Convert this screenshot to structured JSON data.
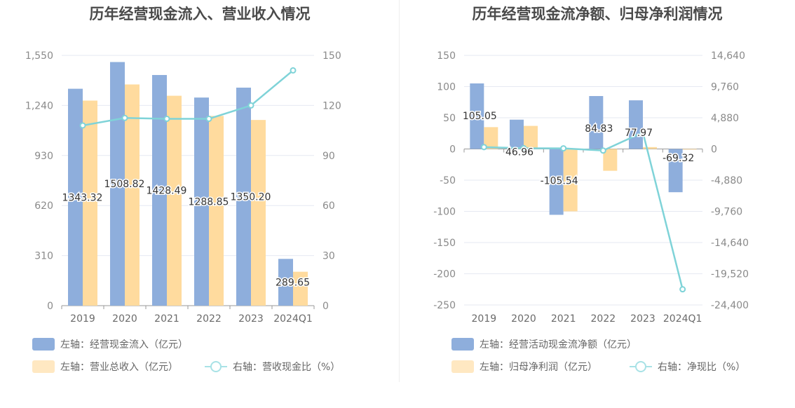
{
  "charts": {
    "left": {
      "title": "历年经营现金流入、营业收入情况",
      "legend": {
        "bar1": "左轴：经营现金流入（亿元）",
        "bar2": "左轴：营业总收入（亿元）",
        "line": "右轴：营收现金比（%）"
      }
    },
    "right": {
      "title": "历年经营现金流净额、归母净利润情况",
      "legend": {
        "bar1": "左轴：经营活动现金流净额（亿元）",
        "bar2": "左轴：归母净利润（亿元）",
        "line": "右轴：净现比（%）"
      }
    }
  },
  "colors": {
    "bar1": "#8eaedc",
    "bar2": "#ffdb9e",
    "line": "#7fd3d8",
    "grid": "#e6e9f2"
  },
  "chart_data": [
    {
      "type": "bar",
      "title": "历年经营现金流入、营业收入情况",
      "categories": [
        "2019",
        "2020",
        "2021",
        "2022",
        "2023",
        "2024Q1"
      ],
      "y_left": {
        "ticks": [
          "0",
          "310",
          "620",
          "930",
          "1,240",
          "1,550"
        ],
        "range": [
          0,
          1550
        ]
      },
      "y_right": {
        "ticks": [
          "0",
          "30",
          "60",
          "90",
          "120",
          "150"
        ],
        "range": [
          0,
          150
        ]
      },
      "series": [
        {
          "name": "左轴：经营现金流入（亿元）",
          "axis": "left",
          "kind": "bar",
          "values": [
            1343.32,
            1508.82,
            1428.49,
            1288.85,
            1350.2,
            289.65
          ],
          "labels": [
            "1343.32",
            "1508.82",
            "1428.49",
            "1288.85",
            "1350.20",
            "289.65"
          ]
        },
        {
          "name": "左轴：营业总收入（亿元）",
          "axis": "left",
          "kind": "bar",
          "values": [
            1270,
            1370,
            1300,
            1175,
            1150,
            210
          ]
        },
        {
          "name": "右轴：营收现金比（%）",
          "axis": "right",
          "kind": "line",
          "values": [
            108,
            112.5,
            112,
            112,
            120,
            141
          ]
        }
      ]
    },
    {
      "type": "bar",
      "title": "历年经营现金流净额、归母净利润情况",
      "categories": [
        "2019",
        "2020",
        "2021",
        "2022",
        "2023",
        "2024Q1"
      ],
      "y_left": {
        "ticks": [
          "-250",
          "-200",
          "-150",
          "-100",
          "-50",
          "0",
          "50",
          "100",
          "150"
        ],
        "range": [
          -250,
          150
        ]
      },
      "y_right": {
        "ticks": [
          "-24,400",
          "-19,520",
          "-14,640",
          "-9,760",
          "-4,880",
          "0",
          "4,880",
          "9,760",
          "14,640"
        ],
        "range": [
          -24400,
          14640
        ]
      },
      "series": [
        {
          "name": "左轴：经营活动现金流净额（亿元）",
          "axis": "left",
          "kind": "bar",
          "values": [
            105.05,
            46.96,
            -105.54,
            84.83,
            77.97,
            -69.32
          ],
          "labels": [
            "105.05",
            "46.96",
            "-105.54",
            "84.83",
            "77.97",
            "-69.32"
          ]
        },
        {
          "name": "左轴：归母净利润（亿元）",
          "axis": "left",
          "kind": "bar",
          "values": [
            35,
            37,
            -100,
            -35,
            3,
            -1
          ]
        },
        {
          "name": "右轴：净现比（%）",
          "axis": "right",
          "kind": "line",
          "values": [
            290,
            120,
            100,
            -250,
            2600,
            -21950
          ]
        }
      ]
    }
  ]
}
